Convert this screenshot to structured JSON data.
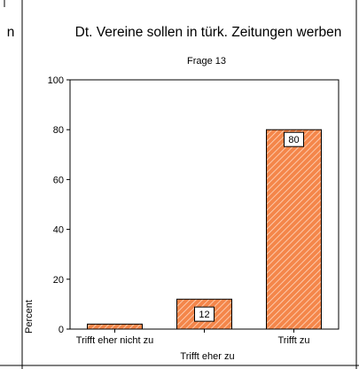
{
  "cut_text": "n",
  "chart_data": {
    "type": "bar",
    "title": "Dt. Vereine sollen in türk. Zeitungen werben",
    "subtitle": "Frage 13",
    "xlabel": "Trifft eher zu",
    "ylabel": "Percent",
    "categories": [
      "Trifft eher nicht zu",
      "Trifft eher zu",
      "Trifft zu"
    ],
    "category_labels_shown": [
      "Trifft eher nicht zu",
      "",
      "Trifft zu"
    ],
    "values": [
      2,
      12,
      80
    ],
    "data_labels": [
      "",
      "12",
      "80"
    ],
    "ylim": [
      0,
      100
    ],
    "yticks": [
      "0",
      "20",
      "40",
      "60",
      "80",
      "100"
    ],
    "grid": false,
    "bar_fill": "#f4864a",
    "bar_hatch": "#ffd9c2",
    "bar_stroke": "#000000"
  }
}
